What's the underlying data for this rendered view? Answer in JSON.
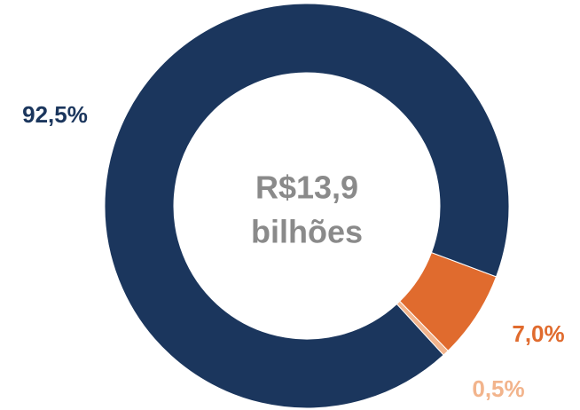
{
  "chart_data": {
    "type": "donut",
    "center_label": [
      "R$13,9",
      "bilhões"
    ],
    "categories": [
      null,
      null,
      null
    ],
    "values": [
      92.5,
      7.0,
      0.5
    ],
    "value_labels": [
      "92,5%",
      "7,0%",
      "0,5%"
    ],
    "colors": [
      "#1b365d",
      "#e06b2e",
      "#f2b48c"
    ],
    "center_label_color": "#8a8a8a"
  }
}
